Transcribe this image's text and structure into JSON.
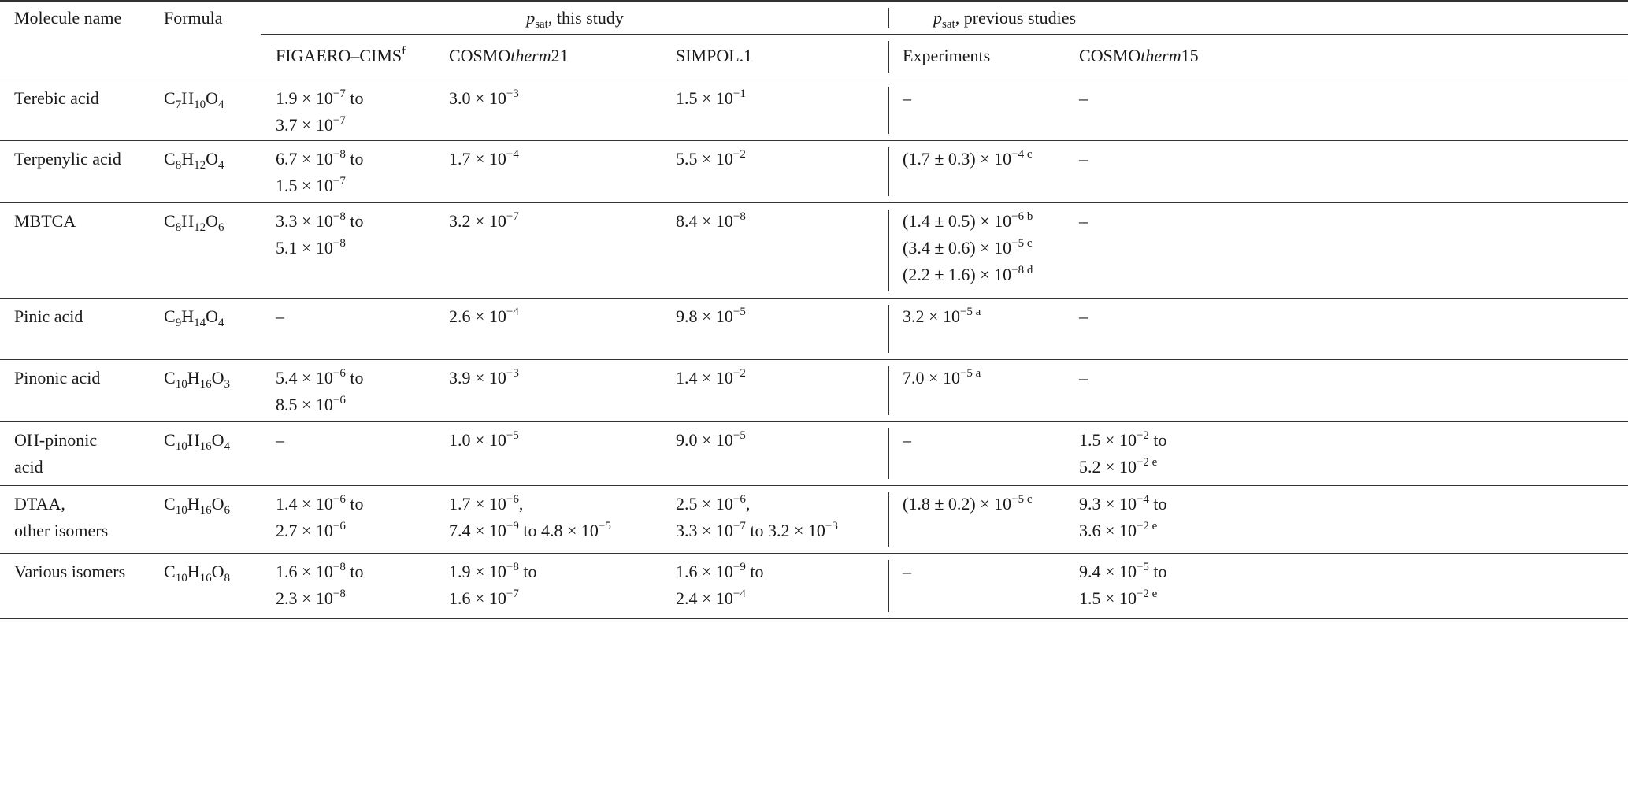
{
  "header": {
    "molecule_name": "Molecule name",
    "formula": "Formula",
    "this_study": [
      {
        "i": "p"
      },
      {
        "sub": "sat"
      },
      ", this study"
    ],
    "previous_studies": [
      {
        "i": "p"
      },
      {
        "sub": "sat"
      },
      ", previous studies"
    ],
    "columns": [
      [
        "FIGAERO–CIMS",
        {
          "sup": "f"
        }
      ],
      [
        "COSMO",
        {
          "i": "therm"
        },
        "21"
      ],
      [
        "SIMPOL.1"
      ],
      [
        "Experiments"
      ],
      [
        "COSMO",
        {
          "i": "therm"
        },
        "15"
      ]
    ]
  },
  "rows": [
    {
      "name": [
        [
          "Terebic acid"
        ]
      ],
      "formula": [
        "C",
        {
          "sub": "7"
        },
        "H",
        {
          "sub": "10"
        },
        "O",
        {
          "sub": "4"
        }
      ],
      "cells": [
        [
          [
            "1.9 × 10",
            {
              "sup": "−7"
            },
            " to"
          ],
          [
            "3.7 × 10",
            {
              "sup": "−7"
            }
          ]
        ],
        [
          [
            "3.0 × 10",
            {
              "sup": "−3"
            }
          ]
        ],
        [
          [
            "1.5 × 10",
            {
              "sup": "−1"
            }
          ]
        ],
        [
          [
            "–"
          ]
        ],
        [
          [
            "–"
          ]
        ]
      ]
    },
    {
      "name": [
        [
          "Terpenylic acid"
        ]
      ],
      "formula": [
        "C",
        {
          "sub": "8"
        },
        "H",
        {
          "sub": "12"
        },
        "O",
        {
          "sub": "4"
        }
      ],
      "cells": [
        [
          [
            "6.7 × 10",
            {
              "sup": "−8"
            },
            " to"
          ],
          [
            "1.5 × 10",
            {
              "sup": "−7"
            }
          ]
        ],
        [
          [
            "1.7 × 10",
            {
              "sup": "−4"
            }
          ]
        ],
        [
          [
            "5.5 × 10",
            {
              "sup": "−2"
            }
          ]
        ],
        [
          [
            "(1.7 ± 0.3) × 10",
            {
              "sup": "−4 c"
            }
          ]
        ],
        [
          [
            "–"
          ]
        ]
      ]
    },
    {
      "name": [
        [
          "MBTCA"
        ]
      ],
      "formula": [
        "C",
        {
          "sub": "8"
        },
        "H",
        {
          "sub": "12"
        },
        "O",
        {
          "sub": "6"
        }
      ],
      "cells": [
        [
          [
            "3.3 × 10",
            {
              "sup": "−8"
            },
            " to"
          ],
          [
            "5.1 × 10",
            {
              "sup": "−8"
            }
          ]
        ],
        [
          [
            "3.2 × 10",
            {
              "sup": "−7"
            }
          ]
        ],
        [
          [
            "8.4 × 10",
            {
              "sup": "−8"
            }
          ]
        ],
        [
          [
            "(1.4 ± 0.5) × 10",
            {
              "sup": "−6 b"
            }
          ],
          [
            "(3.4 ± 0.6) × 10",
            {
              "sup": "−5 c"
            }
          ],
          [
            "(2.2 ± 1.6) × 10",
            {
              "sup": "−8 d"
            }
          ]
        ],
        [
          [
            "–"
          ]
        ]
      ]
    },
    {
      "name": [
        [
          "Pinic acid"
        ]
      ],
      "formula": [
        "C",
        {
          "sub": "9"
        },
        "H",
        {
          "sub": "14"
        },
        "O",
        {
          "sub": "4"
        }
      ],
      "cells": [
        [
          [
            "–"
          ]
        ],
        [
          [
            "2.6 × 10",
            {
              "sup": "−4"
            }
          ]
        ],
        [
          [
            "9.8 × 10",
            {
              "sup": "−5"
            }
          ]
        ],
        [
          [
            "3.2 × 10",
            {
              "sup": "−5 a"
            }
          ]
        ],
        [
          [
            "–"
          ]
        ]
      ]
    },
    {
      "name": [
        [
          "Pinonic acid"
        ]
      ],
      "formula": [
        "C",
        {
          "sub": "10"
        },
        "H",
        {
          "sub": "16"
        },
        "O",
        {
          "sub": "3"
        }
      ],
      "cells": [
        [
          [
            "5.4 × 10",
            {
              "sup": "−6"
            },
            " to"
          ],
          [
            "8.5 × 10",
            {
              "sup": "−6"
            }
          ]
        ],
        [
          [
            "3.9 × 10",
            {
              "sup": "−3"
            }
          ]
        ],
        [
          [
            "1.4 × 10",
            {
              "sup": "−2"
            }
          ]
        ],
        [
          [
            "7.0 × 10",
            {
              "sup": "−5 a"
            }
          ]
        ],
        [
          [
            "–"
          ]
        ]
      ]
    },
    {
      "name": [
        [
          "OH-pinonic"
        ],
        [
          "acid"
        ]
      ],
      "formula": [
        "C",
        {
          "sub": "10"
        },
        "H",
        {
          "sub": "16"
        },
        "O",
        {
          "sub": "4"
        }
      ],
      "cells": [
        [
          [
            "–"
          ]
        ],
        [
          [
            "1.0 × 10",
            {
              "sup": "−5"
            }
          ]
        ],
        [
          [
            "9.0 × 10",
            {
              "sup": "−5"
            }
          ]
        ],
        [
          [
            "–"
          ]
        ],
        [
          [
            "1.5 × 10",
            {
              "sup": "−2"
            },
            " to"
          ],
          [
            "5.2 × 10",
            {
              "sup": "−2 e"
            }
          ]
        ]
      ]
    },
    {
      "name": [
        [
          "DTAA,"
        ],
        [
          "other isomers"
        ]
      ],
      "formula": [
        "C",
        {
          "sub": "10"
        },
        "H",
        {
          "sub": "16"
        },
        "O",
        {
          "sub": "6"
        }
      ],
      "cells": [
        [
          [
            "1.4 × 10",
            {
              "sup": "−6"
            },
            " to"
          ],
          [
            "2.7 × 10",
            {
              "sup": "−6"
            }
          ]
        ],
        [
          [
            "1.7 × 10",
            {
              "sup": "−6"
            },
            ","
          ],
          [
            "7.4 × 10",
            {
              "sup": "−9"
            },
            " to 4.8 × 10",
            {
              "sup": "−5"
            }
          ]
        ],
        [
          [
            "2.5 × 10",
            {
              "sup": "−6"
            },
            ","
          ],
          [
            "3.3 × 10",
            {
              "sup": "−7"
            },
            " to 3.2 × 10",
            {
              "sup": "−3"
            }
          ]
        ],
        [
          [
            "(1.8 ± 0.2) × 10",
            {
              "sup": "−5 c"
            }
          ]
        ],
        [
          [
            "9.3 × 10",
            {
              "sup": "−4"
            },
            " to"
          ],
          [
            "3.6 × 10",
            {
              "sup": "−2 e"
            }
          ]
        ]
      ]
    },
    {
      "name": [
        [
          "Various isomers"
        ]
      ],
      "formula": [
        "C",
        {
          "sub": "10"
        },
        "H",
        {
          "sub": "16"
        },
        "O",
        {
          "sub": "8"
        }
      ],
      "cells": [
        [
          [
            "1.6 × 10",
            {
              "sup": "−8"
            },
            " to"
          ],
          [
            "2.3 × 10",
            {
              "sup": "−8"
            }
          ]
        ],
        [
          [
            "1.9 × 10",
            {
              "sup": "−8"
            },
            " to"
          ],
          [
            "1.6 × 10",
            {
              "sup": "−7"
            }
          ]
        ],
        [
          [
            "1.6 × 10",
            {
              "sup": "−9"
            },
            " to"
          ],
          [
            "2.4 × 10",
            {
              "sup": "−4"
            }
          ]
        ],
        [
          [
            "–"
          ]
        ],
        [
          [
            "9.4 × 10",
            {
              "sup": "−5"
            },
            " to"
          ],
          [
            "1.5 × 10",
            {
              "sup": "−2 e"
            }
          ]
        ]
      ]
    }
  ]
}
